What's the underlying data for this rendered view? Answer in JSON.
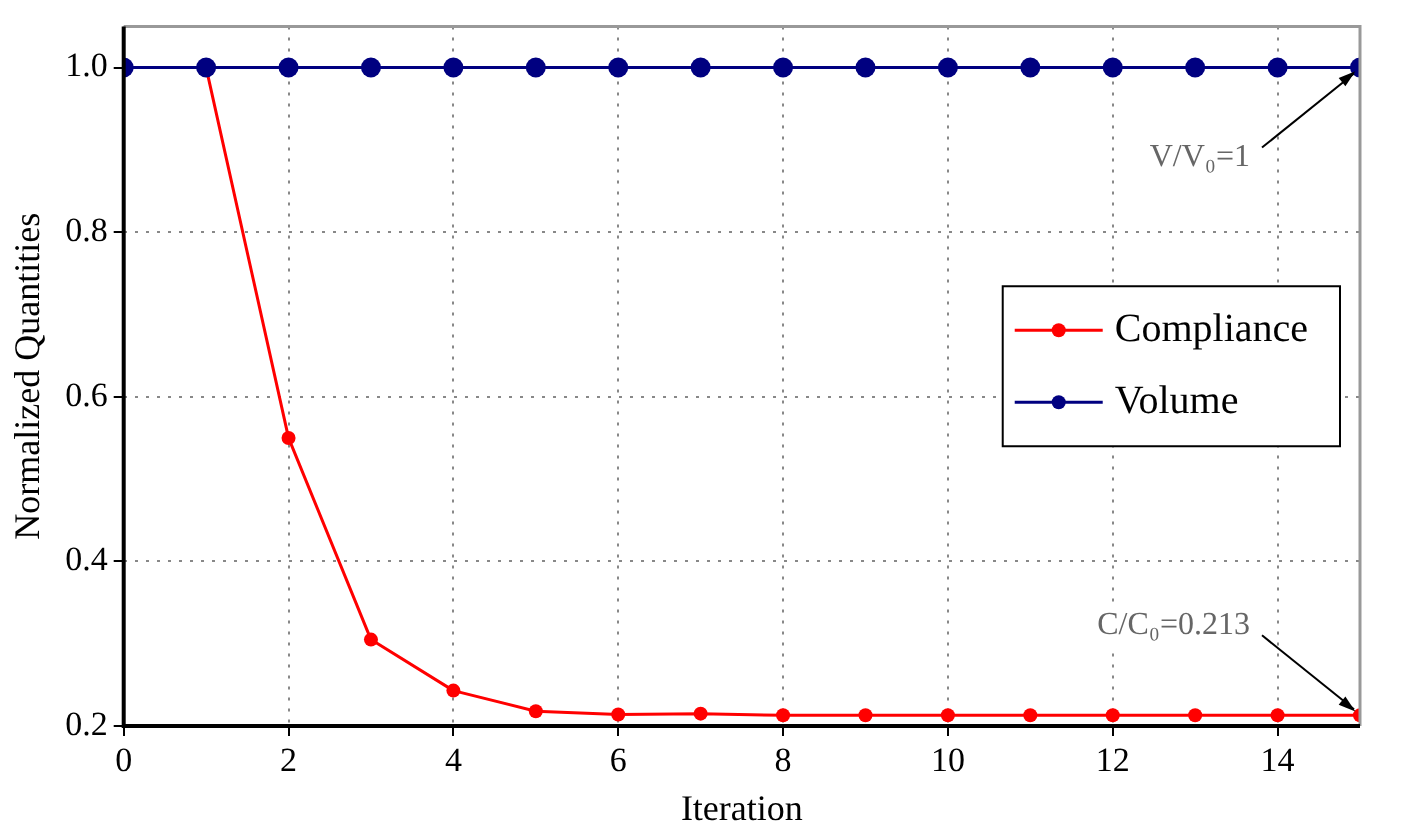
{
  "chart_data": {
    "type": "line",
    "xlabel": "Iteration",
    "ylabel": "Normalized Quantities",
    "x": [
      0,
      1,
      2,
      3,
      4,
      5,
      6,
      7,
      8,
      9,
      10,
      11,
      12,
      13,
      14,
      15
    ],
    "series": [
      {
        "name": "Compliance",
        "color": "#ff0000",
        "values": [
          1,
          1,
          0.55,
          0.305,
          0.243,
          0.218,
          0.214,
          0.215,
          0.213,
          0.213,
          0.213,
          0.213,
          0.213,
          0.213,
          0.213,
          0.213
        ]
      },
      {
        "name": "Volume",
        "color": "#000080",
        "values": [
          1,
          1,
          1,
          1,
          1,
          1,
          1,
          1,
          1,
          1,
          1,
          1,
          1,
          1,
          1,
          1
        ]
      }
    ],
    "xlim": [
      0,
      15
    ],
    "xticks": [
      0,
      2,
      4,
      6,
      8,
      10,
      12,
      14
    ],
    "ylim": [
      0.2,
      1.05
    ],
    "yticks": [
      0.2,
      0.4,
      0.6,
      0.8,
      {
        "value": 1,
        "label": "1.0"
      }
    ],
    "grid": true,
    "legend": "right",
    "marker": "circle",
    "line_style": "solid",
    "annotations": [
      {
        "text": "V/V₀=1",
        "x": 15,
        "y": 1
      },
      {
        "text": "C/C₀=0.213",
        "x": 15,
        "y": 0.213
      }
    ]
  }
}
